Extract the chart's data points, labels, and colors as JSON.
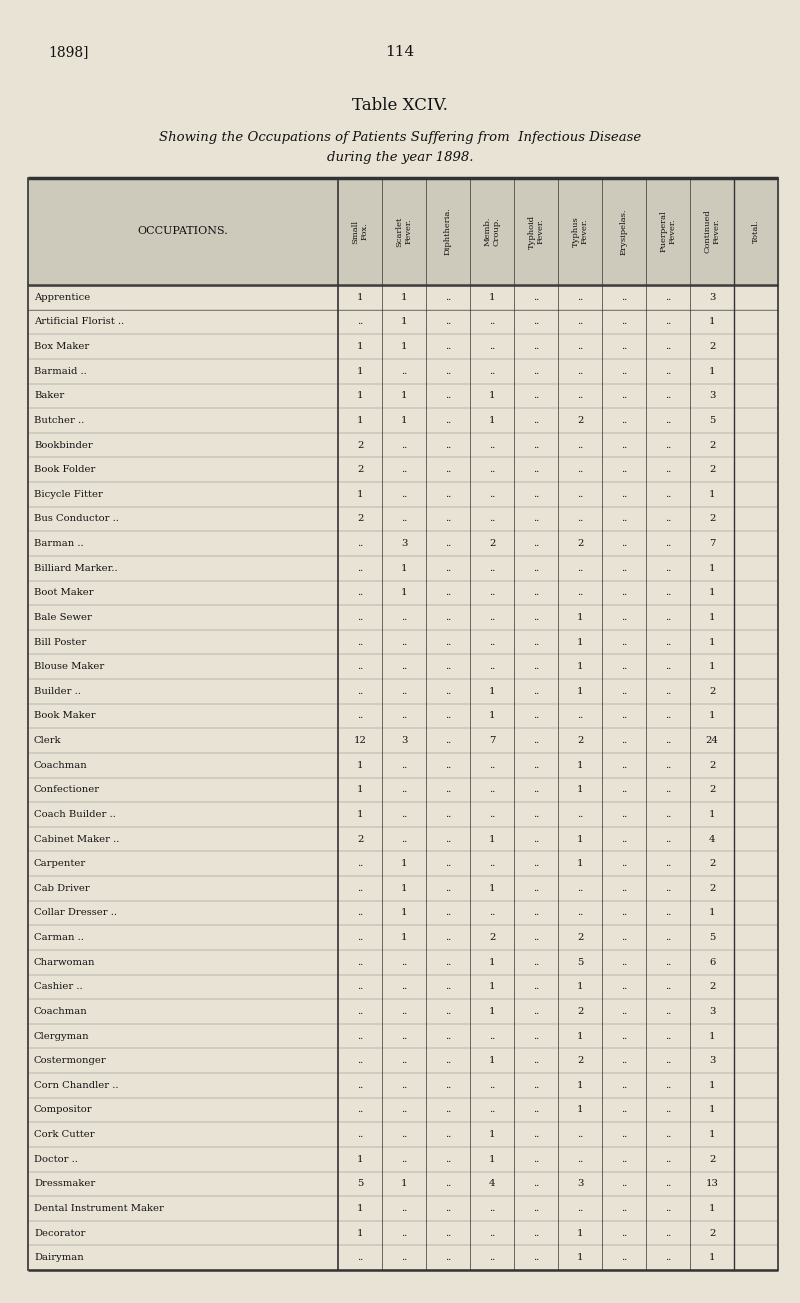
{
  "page_num": "114",
  "year": "1898]",
  "table_title": "Table XCIV.",
  "subtitle_line1": "Showing the Occupations of Patients Suffering from  Infectious Disease",
  "subtitle_line2": "during the year 1898.",
  "col_header": "OCCUPATIONS.",
  "col_headers": [
    "Small\nFox.",
    "Scarlet\nFever.",
    "Diphtheria.",
    "Memb.\nCroup.",
    "Typhoid\nFever.",
    "Typhus\nFever.",
    "Erysipelas.",
    "Puerperal\nFever.",
    "Continued\nFever.",
    "Total."
  ],
  "rows": [
    [
      "Apprentice",
      "..",
      "..",
      "..",
      "..",
      "1",
      "1",
      "..",
      "1",
      "..",
      "..",
      "..",
      "..",
      "3"
    ],
    [
      "Artificial Florist ..",
      "..",
      "..",
      "..",
      "..",
      "..",
      "1",
      "..",
      "..",
      "..",
      "..",
      "..",
      "..",
      "1"
    ],
    [
      "Box Maker",
      "..",
      "..",
      "..",
      "..",
      "1",
      "1",
      "..",
      "..",
      "..",
      "..",
      "..",
      "..",
      "2"
    ],
    [
      "Barmaid ..",
      "..",
      "..",
      "..",
      "..",
      "1",
      "..",
      "..",
      "..",
      "..",
      "..",
      "..",
      "..",
      "1"
    ],
    [
      "Baker",
      "..",
      "..",
      "..",
      "..",
      "1",
      "1",
      "..",
      "1",
      "..",
      "..",
      "..",
      "..",
      "3"
    ],
    [
      "Butcher ..",
      "..",
      "..",
      "..",
      "..",
      "1",
      "1",
      "..",
      "1",
      "..",
      "2",
      "..",
      "..",
      "5"
    ],
    [
      "Bookbinder",
      "..",
      "..",
      "..",
      "..",
      "2",
      "..",
      "..",
      "..",
      "..",
      "..",
      "..",
      "..",
      "2"
    ],
    [
      "Book Folder",
      "..",
      "..",
      "..",
      "..",
      "2",
      "..",
      "..",
      "..",
      "..",
      "..",
      "..",
      "..",
      "2"
    ],
    [
      "Bicycle Fitter",
      "..",
      "..",
      "..",
      "..",
      "1",
      "..",
      "..",
      "..",
      "..",
      "..",
      "..",
      "..",
      "1"
    ],
    [
      "Bus Conductor ..",
      "..",
      "..",
      "..",
      "..",
      "2",
      "..",
      "..",
      "..",
      "..",
      "..",
      "..",
      "..",
      "2"
    ],
    [
      "Barman ..",
      "..",
      "..",
      "..",
      "..",
      "..",
      "3",
      "..",
      "2",
      "..",
      "2",
      "..",
      "..",
      "7"
    ],
    [
      "Billiard Marker..",
      "..",
      "..",
      "..",
      "..",
      "..",
      "1",
      "..",
      "..",
      "..",
      "..",
      "..",
      "..",
      "1"
    ],
    [
      "Boot Maker",
      "..",
      "..",
      "..",
      "..",
      "..",
      "1",
      "..",
      "..",
      "..",
      "..",
      "..",
      "..",
      "1"
    ],
    [
      "Bale Sewer",
      "..",
      "..",
      "..",
      "..",
      "..",
      "..",
      "..",
      "..",
      "..",
      "1",
      "..",
      "..",
      "1"
    ],
    [
      "Bill Poster",
      "..",
      "..",
      "..",
      "..",
      "..",
      "..",
      "..",
      "..",
      "..",
      "1",
      "..",
      "..",
      "1"
    ],
    [
      "Blouse Maker",
      "..",
      "..",
      "..",
      "..",
      "..",
      "..",
      "..",
      "..",
      "..",
      "1",
      "..",
      "..",
      "1"
    ],
    [
      "Builder ..",
      "..",
      "..",
      "..",
      "..",
      "..",
      "..",
      "..",
      "1",
      "..",
      "1",
      "..",
      "..",
      "2"
    ],
    [
      "Book Maker",
      "..",
      "..",
      "..",
      "..",
      "..",
      "..",
      "..",
      "1",
      "..",
      "..",
      "..",
      "..",
      "1"
    ],
    [
      "Clerk",
      "..",
      "..",
      "..",
      "..",
      "12",
      "3",
      "..",
      "7",
      "..",
      "2",
      "..",
      "..",
      "24"
    ],
    [
      "Coachman",
      "..",
      "..",
      "..",
      "..",
      "1",
      "..",
      "..",
      "..",
      "..",
      "1",
      "..",
      "..",
      "2"
    ],
    [
      "Confectioner",
      "..",
      "..",
      "..",
      "..",
      "1",
      "..",
      "..",
      "..",
      "..",
      "1",
      "..",
      "..",
      "2"
    ],
    [
      "Coach Builder ..",
      "..",
      "..",
      "..",
      "..",
      "1",
      "..",
      "..",
      "..",
      "..",
      "..",
      "..",
      "..",
      "1"
    ],
    [
      "Cabinet Maker ..",
      "..",
      "..",
      "..",
      "..",
      "2",
      "..",
      "..",
      "1",
      "..",
      "1",
      "..",
      "..",
      "4"
    ],
    [
      "Carpenter",
      "..",
      "..",
      "..",
      "..",
      "..",
      "1",
      "..",
      "..",
      "..",
      "1",
      "..",
      "..",
      "2"
    ],
    [
      "Cab Driver",
      "..",
      "..",
      "..",
      "..",
      "..",
      "1",
      "..",
      "1",
      "..",
      "..",
      "..",
      "..",
      "2"
    ],
    [
      "Collar Dresser ..",
      "..",
      "..",
      "..",
      "..",
      "..",
      "1",
      "..",
      "..",
      "..",
      "..",
      "..",
      "..",
      "1"
    ],
    [
      "Carman ..",
      "..",
      "..",
      "..",
      "..",
      "..",
      "1",
      "..",
      "2",
      "..",
      "2",
      "..",
      "..",
      "5"
    ],
    [
      "Charwoman",
      "..",
      "..",
      "..",
      "..",
      "..",
      "..",
      "..",
      "1",
      "..",
      "5",
      "..",
      "..",
      "6"
    ],
    [
      "Cashier ..",
      "..",
      "..",
      "..",
      "..",
      "..",
      "..",
      "..",
      "1",
      "..",
      "1",
      "..",
      "..",
      "2"
    ],
    [
      "Coachman",
      "..",
      "..",
      "..",
      "..",
      "..",
      "..",
      "..",
      "1",
      "..",
      "2",
      "..",
      "..",
      "3"
    ],
    [
      "Clergyman",
      "..",
      "..",
      "..",
      "..",
      "..",
      "..",
      "..",
      "..",
      "..",
      "1",
      "..",
      "..",
      "1"
    ],
    [
      "Costermonger",
      "..",
      "..",
      "..",
      "..",
      "..",
      "..",
      "..",
      "1",
      "..",
      "2",
      "..",
      "..",
      "3"
    ],
    [
      "Corn Chandler ..",
      "..",
      "..",
      "..",
      "..",
      "..",
      "..",
      "..",
      "..",
      "..",
      "1",
      "..",
      "..",
      "1"
    ],
    [
      "Compositor",
      "..",
      "..",
      "..",
      "..",
      "..",
      "..",
      "..",
      "..",
      "..",
      "1",
      "..",
      "..",
      "1"
    ],
    [
      "Cork Cutter",
      "..",
      "..",
      "..",
      "..",
      "..",
      "..",
      "..",
      "1",
      "..",
      "..",
      "..",
      "..",
      "1"
    ],
    [
      "Doctor ..",
      "..",
      "..",
      "..",
      "..",
      "1",
      "..",
      "..",
      "1",
      "..",
      "..",
      "..",
      "..",
      "2"
    ],
    [
      "Dressmaker",
      "..",
      "..",
      "..",
      "..",
      "5",
      "1",
      "..",
      "4",
      "..",
      "3",
      "..",
      "..",
      "13"
    ],
    [
      "Dental Instrument Maker",
      "..",
      "..",
      "..",
      "..",
      "1",
      "..",
      "..",
      "..",
      "..",
      "..",
      "..",
      "..",
      "1"
    ],
    [
      "Decorator",
      "..",
      "..",
      "..",
      "..",
      "1",
      "..",
      "..",
      "..",
      "..",
      "1",
      "..",
      "..",
      "2"
    ],
    [
      "Dairyman",
      "..",
      "..",
      "..",
      "..",
      "..",
      "..",
      "..",
      "..",
      "..",
      "1",
      "..",
      "..",
      "1"
    ]
  ],
  "bg_color": "#e8e3d5",
  "text_color": "#111111",
  "header_bg": "#cdc9bb",
  "line_color": "#333333"
}
